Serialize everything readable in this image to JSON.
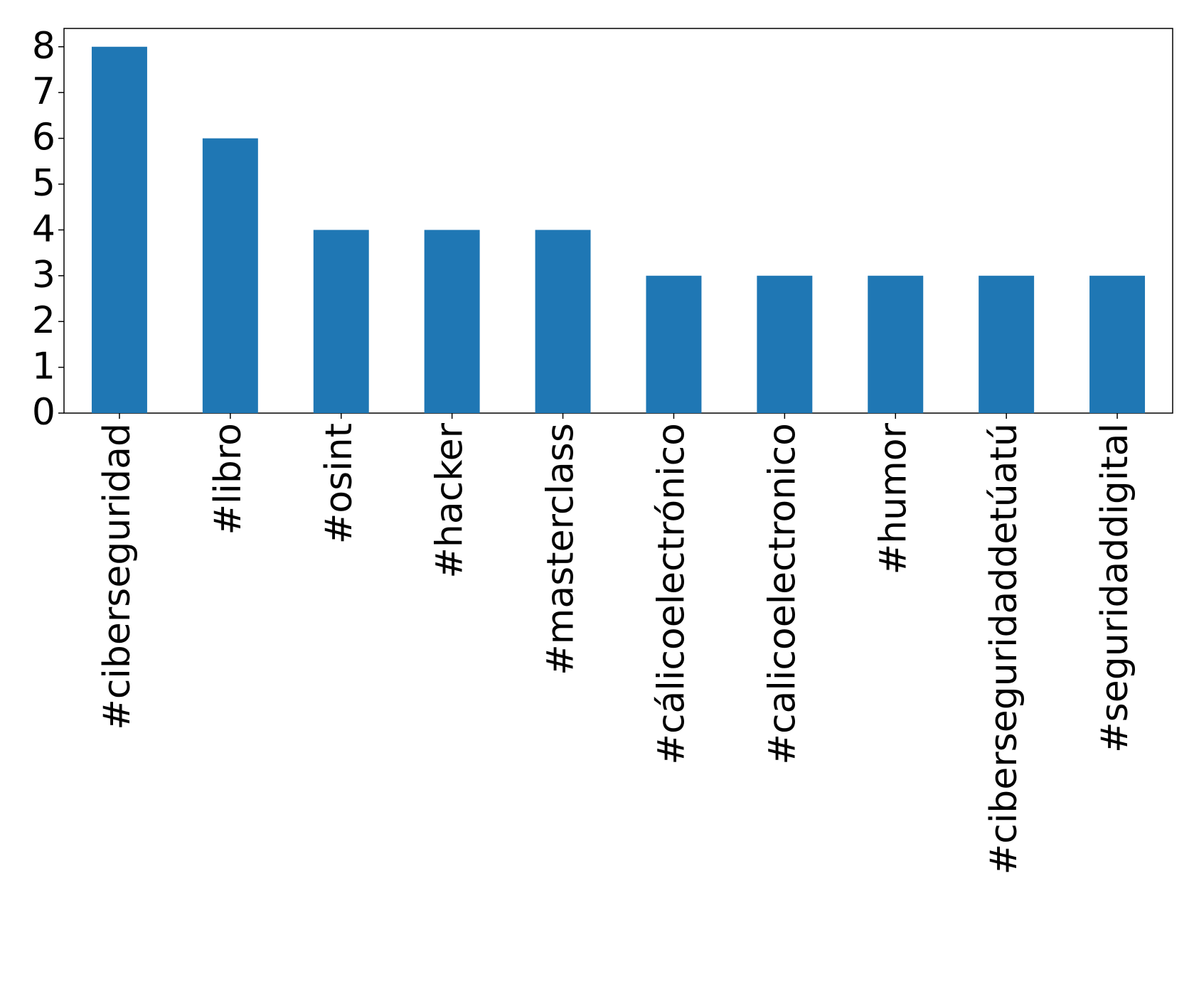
{
  "chart_data": {
    "type": "bar",
    "categories": [
      "#ciberseguridad",
      "#libro",
      "#osint",
      "#hacker",
      "#masterclass",
      "#cálicoelectrónico",
      "#calicoelectronico",
      "#humor",
      "#ciberseguridaddetúatú",
      "#seguridaddigital"
    ],
    "values": [
      8,
      6,
      4,
      4,
      4,
      3,
      3,
      3,
      3,
      3
    ],
    "color": "#1f77b4",
    "ylim": [
      0,
      8.4
    ],
    "yticks": [
      0,
      1,
      2,
      3,
      4,
      5,
      6,
      7,
      8
    ],
    "grid": false
  }
}
